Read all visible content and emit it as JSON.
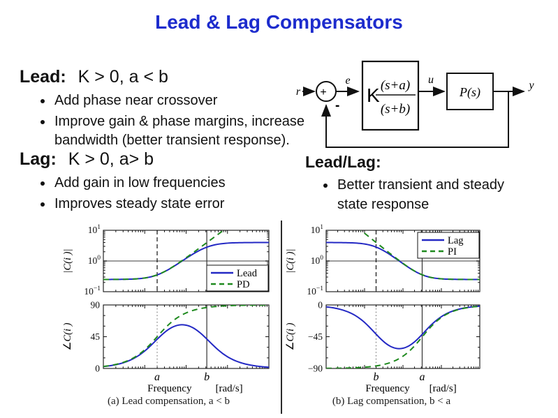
{
  "slide": {
    "title": "Lead & Lag Compensators",
    "title_color": "#1d2ccd"
  },
  "lead_section": {
    "heading": "Lead:",
    "condition": "K > 0, a < b",
    "bullets": [
      "Add phase near crossover",
      "Improve gain & phase margins, increase bandwidth (better transient response)."
    ]
  },
  "lag_section": {
    "heading": "Lag:",
    "condition": "K > 0, a> b",
    "bullets": [
      "Add gain in low frequencies",
      "Improves steady state error"
    ]
  },
  "leadlag_section": {
    "heading": "Lead/Lag:",
    "bullets": [
      "Better transient and steady state response"
    ]
  },
  "block_diagram": {
    "input_label": "r",
    "error_label": "e",
    "control_label": "u",
    "output_label": "y",
    "sum_plus": "+",
    "sum_minus": "-",
    "compensator_gain": "K",
    "compensator_numerator": "(s+a)",
    "compensator_denominator": "(s+b)",
    "plant_label": "P(s)"
  },
  "captions": {
    "left": "(a) Lead compensation, a < b",
    "right": "(b) Lag compensation, b < a"
  },
  "colors": {
    "line_blue": "#2429c4",
    "line_green": "#1f8a1f",
    "unity_gray": "#8f8f8f"
  },
  "chart_data": [
    {
      "id": "lead_magnitude",
      "type": "line",
      "ylabel": "|C(i )|",
      "xscale": "log",
      "yscale": "log",
      "xlim_log10": [
        -2,
        2
      ],
      "ylim": [
        0.1,
        10
      ],
      "ytick_exponents": [
        1,
        0,
        -1
      ],
      "hline": 1.0,
      "vlines": [
        {
          "log10_x": -0.7,
          "style": "dashed",
          "marks": "a"
        },
        {
          "log10_x": 0.5,
          "style": "solid",
          "marks": "b"
        }
      ],
      "legend": {
        "position": "bottom-right",
        "entries": [
          "Lead",
          "PD"
        ]
      },
      "series": [
        {
          "name": "Lead",
          "color": "#2429c4",
          "dash": "solid",
          "formula": "zp",
          "K": 4,
          "z": 0.2,
          "p": 3.2,
          "log10_w": [
            -2,
            -1.75,
            -1.5,
            -1.25,
            -1,
            -0.75,
            -0.5,
            -0.25,
            0,
            0.25,
            0.5,
            0.75,
            1,
            1.25,
            1.5,
            1.75,
            2
          ],
          "mag": [
            0.25,
            0.251,
            0.253,
            0.26,
            0.279,
            0.334,
            0.466,
            0.735,
            1.217,
            1.955,
            2.817,
            3.479,
            3.81,
            3.937,
            3.98,
            3.994,
            3.998
          ]
        },
        {
          "name": "PD",
          "color": "#1f8a1f",
          "dash": "dashed",
          "formula": "z",
          "K": 1.25,
          "z": 0.2,
          "log10_w": [
            -2,
            -1.75,
            -1.5,
            -1.25,
            -1,
            -0.75,
            -0.5,
            -0.25,
            0,
            0.25,
            0.5,
            0.75,
            1,
            1.25,
            1.5,
            1.75,
            2
          ],
          "mag": [
            0.25,
            0.251,
            0.253,
            0.26,
            0.279,
            0.334,
            0.468,
            0.746,
            1.275,
            2.237,
            3.961,
            7.034,
            12.503,
            22.232,
            39.529,
            70.29,
            125.001
          ]
        }
      ]
    },
    {
      "id": "lead_phase",
      "type": "line",
      "ylabel": "∠C(i )",
      "xscale": "log",
      "yscale": "linear",
      "xlim_log10": [
        -2,
        2
      ],
      "ylim": [
        0,
        90
      ],
      "yticks": [
        90,
        45,
        0
      ],
      "xlabel": "Frequency",
      "x_unit": "[rad/s]",
      "x_letter_labels": [
        {
          "log10_x": -0.7,
          "label": "a"
        },
        {
          "log10_x": 0.5,
          "label": "b"
        }
      ],
      "vlines": [
        {
          "log10_x": -0.7,
          "style": "dotted"
        },
        {
          "log10_x": 0.5,
          "style": "solid"
        }
      ],
      "series": [
        {
          "name": "Lead",
          "color": "#2429c4",
          "dash": "solid",
          "formula": "zp",
          "K": 4,
          "z": 0.2,
          "p": 3.2,
          "log10_w": [
            -2,
            -1.75,
            -1.5,
            -1.25,
            -1,
            -0.75,
            -0.5,
            -0.25,
            0,
            0.25,
            0.5,
            0.75,
            1,
            1.25,
            1.5,
            1.75,
            2
          ],
          "phase_deg": [
            2.68,
            4.76,
            8.42,
            14.7,
            24.78,
            38.45,
            52.05,
            60.45,
            61.34,
            54.53,
            41.72,
            27.61,
            16.59,
            9.56,
            5.42,
            3.06,
            1.72
          ]
        },
        {
          "name": "PD",
          "color": "#1f8a1f",
          "dash": "dashed",
          "formula": "z",
          "K": 1.25,
          "z": 0.2,
          "log10_w": [
            -2,
            -1.75,
            -1.5,
            -1.25,
            -1,
            -0.75,
            -0.5,
            -0.25,
            0,
            0.25,
            0.5,
            0.75,
            1,
            1.25,
            1.5,
            1.75,
            2
          ],
          "phase_deg": [
            2.86,
            5.08,
            8.98,
            15.7,
            26.57,
            41.63,
            57.69,
            70.42,
            78.69,
            83.58,
            86.38,
            87.96,
            88.85,
            89.36,
            89.64,
            89.8,
            89.89
          ]
        }
      ]
    },
    {
      "id": "lag_magnitude",
      "type": "line",
      "ylabel": "|C(i )|",
      "xscale": "log",
      "yscale": "log",
      "xlim_log10": [
        -2,
        2
      ],
      "ylim": [
        0.1,
        10
      ],
      "ytick_exponents": [
        1,
        0,
        -1
      ],
      "hline": 1.0,
      "vlines": [
        {
          "log10_x": -0.7,
          "style": "dashed",
          "marks": "b"
        },
        {
          "log10_x": 0.5,
          "style": "solid",
          "marks": "a"
        }
      ],
      "legend": {
        "position": "top-right",
        "entries": [
          "Lag",
          "PI"
        ]
      },
      "series": [
        {
          "name": "Lag",
          "color": "#2429c4",
          "dash": "solid",
          "formula": "zp",
          "K": 0.25,
          "z": 3.2,
          "p": 0.2,
          "log10_w": [
            -2,
            -1.75,
            -1.5,
            -1.25,
            -1,
            -0.75,
            -0.5,
            -0.25,
            0,
            0.25,
            0.5,
            0.75,
            1,
            1.25,
            1.5,
            1.75,
            2
          ],
          "mag": [
            3.995,
            3.984,
            3.951,
            3.851,
            3.579,
            2.994,
            2.148,
            1.361,
            0.822,
            0.512,
            0.355,
            0.287,
            0.262,
            0.254,
            0.251,
            0.25,
            0.25
          ]
        },
        {
          "name": "PI",
          "color": "#1f8a1f",
          "dash": "dashed",
          "formula": "z_over_s",
          "K": 0.25,
          "z": 3.2,
          "log10_w": [
            -2,
            -1.75,
            -1.5,
            -1.25,
            -1,
            -0.75,
            -0.5,
            -0.25,
            0,
            0.25,
            0.5,
            0.75,
            1,
            1.25,
            1.5,
            1.75,
            2
          ],
          "mag": [
            80.0,
            44.99,
            25.31,
            14.24,
            8.0,
            4.51,
            2.54,
            1.44,
            0.838,
            0.515,
            0.356,
            0.288,
            0.262,
            0.254,
            0.251,
            0.25,
            0.25
          ]
        }
      ]
    },
    {
      "id": "lag_phase",
      "type": "line",
      "ylabel": "∠C(i )",
      "xscale": "log",
      "yscale": "linear",
      "xlim_log10": [
        -2,
        2
      ],
      "ylim": [
        -90,
        0
      ],
      "yticks": [
        0,
        -45,
        -90
      ],
      "xlabel": "Frequency",
      "x_unit": "[rad/s]",
      "x_letter_labels": [
        {
          "log10_x": -0.7,
          "label": "b"
        },
        {
          "log10_x": 0.5,
          "label": "a"
        }
      ],
      "vlines": [
        {
          "log10_x": -0.7,
          "style": "dotted"
        },
        {
          "log10_x": 0.5,
          "style": "solid"
        }
      ],
      "series": [
        {
          "name": "Lag",
          "color": "#2429c4",
          "dash": "solid",
          "formula": "zp",
          "K": 0.25,
          "z": 3.2,
          "p": 0.2,
          "log10_w": [
            -2,
            -1.75,
            -1.5,
            -1.25,
            -1,
            -0.75,
            -0.5,
            -0.25,
            0,
            0.25,
            0.5,
            0.75,
            1,
            1.25,
            1.5,
            1.75,
            2
          ],
          "phase_deg": [
            -2.68,
            -4.76,
            -8.42,
            -14.7,
            -24.78,
            -38.45,
            -52.05,
            -60.45,
            -61.34,
            -54.53,
            -41.72,
            -27.61,
            -16.59,
            -9.56,
            -5.42,
            -3.06,
            -1.72
          ]
        },
        {
          "name": "PI",
          "color": "#1f8a1f",
          "dash": "dashed",
          "formula": "z_over_s",
          "K": 0.25,
          "z": 3.2,
          "log10_w": [
            -2,
            -1.75,
            -1.5,
            -1.25,
            -1,
            -0.75,
            -0.5,
            -0.25,
            0,
            0.25,
            0.5,
            0.75,
            1,
            1.25,
            1.5,
            1.75,
            2
          ],
          "phase_deg": [
            -89.82,
            -89.68,
            -89.43,
            -88.99,
            -88.21,
            -86.82,
            -84.36,
            -80.03,
            -72.65,
            -60.95,
            -45.34,
            -29.65,
            -17.74,
            -10.2,
            -5.78,
            -3.26,
            -1.83
          ]
        }
      ]
    }
  ]
}
